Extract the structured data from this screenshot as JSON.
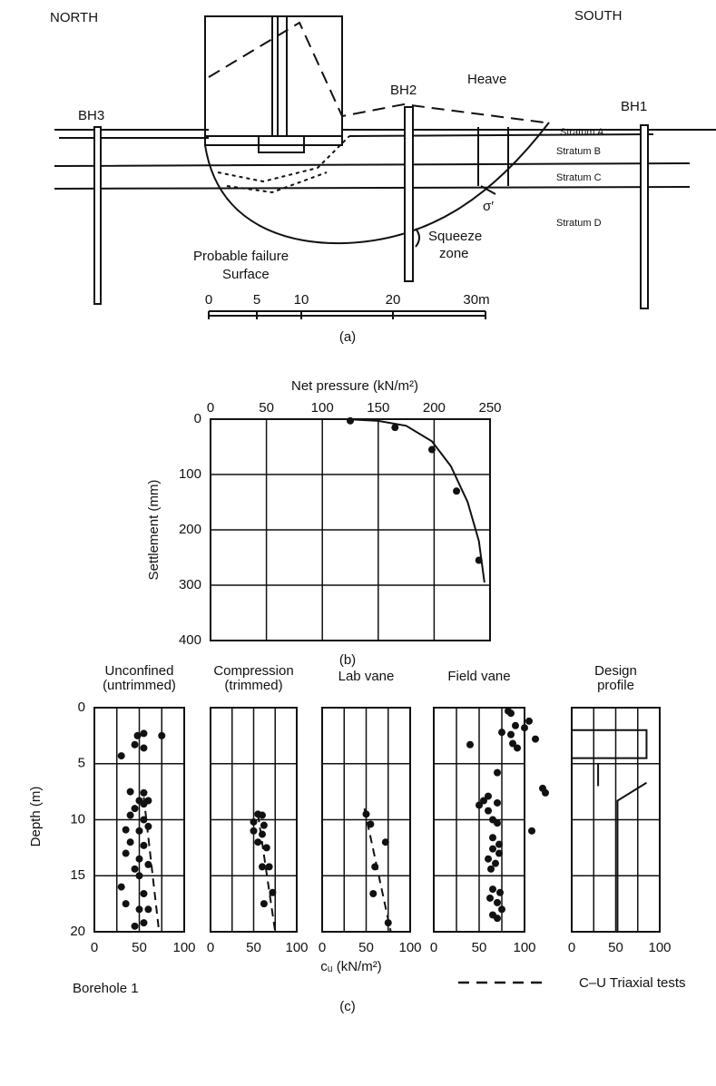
{
  "diagram": {
    "north": "NORTH",
    "south": "SOUTH",
    "bh3": "BH3",
    "bh2": "BH2",
    "bh1": "BH1",
    "heave": "Heave",
    "stratum_a": "Stratum A",
    "stratum_b": "Stratum B",
    "stratum_c": "Stratum C",
    "stratum_d": "Stratum D",
    "failure_1": "Probable failure",
    "failure_2": "Surface",
    "squeeze_1": "Squeeze",
    "squeeze_2": "zone",
    "sigma": "σ′",
    "scale": [
      "0",
      "5",
      "10",
      "20",
      "30m"
    ],
    "panel_label": "(a)"
  },
  "figure_b": {
    "panel_label": "(b)"
  },
  "figure_c": {
    "xlabel": "cᵤ (kN/m²)",
    "ylabel": "Depth (m)",
    "note": "Borehole 1",
    "legend": "C–U Triaxial tests",
    "panel_label": "(c)"
  },
  "chart_data": [
    {
      "type": "scatter",
      "xlabel": "Net pressure (kN/m²)",
      "ylabel": "Settlement (mm)",
      "xlim": [
        0,
        250
      ],
      "xticks": [
        0,
        50,
        100,
        150,
        200,
        250
      ],
      "x_axis_position": "top",
      "ylim": [
        0,
        400
      ],
      "yticks": [
        0,
        100,
        200,
        300,
        400
      ],
      "y_inverted": true,
      "show_ytick_labels": true,
      "grid": true,
      "points": {
        "x": [
          125,
          165,
          198,
          220,
          240
        ],
        "y": [
          3,
          15,
          55,
          130,
          255
        ]
      },
      "lines": [
        {
          "style": "dashed",
          "x": [
            0,
            120
          ],
          "y": [
            0,
            0
          ]
        },
        {
          "style": "solid",
          "x": [
            120,
            150,
            175,
            198,
            215,
            230,
            240,
            245
          ],
          "y": [
            0,
            3,
            12,
            40,
            85,
            150,
            220,
            295
          ]
        }
      ]
    },
    {
      "type": "scatter",
      "title": [
        "Unconfined",
        "(untrimmed)"
      ],
      "xlim": [
        0,
        100
      ],
      "xticks": [
        0,
        50,
        100
      ],
      "xminor": [
        25,
        75
      ],
      "x_axis_position": "bottom",
      "ylim": [
        0,
        20
      ],
      "yticks": [
        0,
        5,
        10,
        15,
        20
      ],
      "y_inverted": true,
      "show_ytick_labels": true,
      "grid": true,
      "points": {
        "x": [
          48,
          55,
          75,
          45,
          55,
          30,
          40,
          55,
          50,
          55,
          45,
          60,
          40,
          55,
          35,
          50,
          60,
          40,
          55,
          35,
          50,
          45,
          60,
          50,
          30,
          55,
          35,
          60,
          50,
          45,
          55
        ],
        "y": [
          2.5,
          2.3,
          2.5,
          3.3,
          3.6,
          4.3,
          7.5,
          7.6,
          8.3,
          8.6,
          9,
          8.3,
          9.6,
          10,
          10.9,
          11,
          10.6,
          12,
          12.3,
          13,
          13.5,
          14.4,
          14,
          15,
          16,
          16.6,
          17.5,
          18,
          18,
          19.5,
          19.2
        ]
      },
      "lines": [
        {
          "style": "dashed",
          "x": [
            55,
            72
          ],
          "y": [
            8,
            20
          ]
        }
      ]
    },
    {
      "type": "scatter",
      "title": [
        "Compression",
        "(trimmed)"
      ],
      "xlim": [
        0,
        100
      ],
      "xticks": [
        0,
        50,
        100
      ],
      "xminor": [
        25,
        75
      ],
      "x_axis_position": "bottom",
      "ylim": [
        0,
        20
      ],
      "yticks": [
        0,
        5,
        10,
        15,
        20
      ],
      "y_inverted": true,
      "show_ytick_labels": false,
      "grid": true,
      "points": {
        "x": [
          55,
          60,
          50,
          62,
          50,
          60,
          55,
          65,
          60,
          68,
          72,
          62
        ],
        "y": [
          9.5,
          9.6,
          10.2,
          10.5,
          11,
          11.3,
          12,
          12.5,
          14.2,
          14.2,
          16.5,
          17.5
        ]
      },
      "lines": [
        {
          "style": "dashed",
          "x": [
            55,
            75
          ],
          "y": [
            9.5,
            20
          ]
        }
      ]
    },
    {
      "type": "scatter",
      "title": [
        "Lab  vane"
      ],
      "xlim": [
        0,
        100
      ],
      "xticks": [
        0,
        50,
        100
      ],
      "xminor": [
        25,
        75
      ],
      "x_axis_position": "bottom",
      "ylim": [
        0,
        20
      ],
      "yticks": [
        0,
        5,
        10,
        15,
        20
      ],
      "y_inverted": true,
      "show_ytick_labels": false,
      "grid": true,
      "points": {
        "x": [
          50,
          55,
          72,
          60,
          58,
          75
        ],
        "y": [
          9.5,
          10.4,
          12,
          14.2,
          16.6,
          19.2
        ]
      },
      "lines": [
        {
          "style": "dashed",
          "x": [
            48,
            78
          ],
          "y": [
            9,
            20
          ]
        }
      ]
    },
    {
      "type": "scatter",
      "title": [
        "Field vane"
      ],
      "xlim": [
        0,
        100
      ],
      "xticks": [
        0,
        50,
        100
      ],
      "xminor": [
        25,
        75
      ],
      "x_axis_position": "bottom",
      "ylim": [
        0,
        20
      ],
      "yticks": [
        0,
        5,
        10,
        15,
        20
      ],
      "y_inverted": true,
      "show_ytick_labels": false,
      "grid": true,
      "points": {
        "x": [
          82,
          85,
          105,
          90,
          100,
          75,
          85,
          112,
          87,
          92,
          40,
          70,
          120,
          123,
          60,
          55,
          70,
          50,
          60,
          65,
          70,
          108,
          65,
          72,
          65,
          72,
          60,
          68,
          63,
          65,
          73,
          62,
          70,
          75,
          65,
          70
        ],
        "y": [
          0.3,
          0.5,
          1.2,
          1.6,
          1.8,
          2.2,
          2.4,
          2.8,
          3.2,
          3.6,
          3.3,
          5.8,
          7.2,
          7.6,
          7.9,
          8.3,
          8.5,
          8.7,
          9.2,
          10,
          10.3,
          11,
          11.6,
          12.2,
          12.6,
          13,
          13.5,
          13.9,
          14.4,
          16.2,
          16.5,
          17,
          17.4,
          18,
          18.5,
          18.8
        ]
      },
      "lines": []
    },
    {
      "type": "scatter",
      "title": [
        "Design",
        "profile"
      ],
      "xlim": [
        0,
        100
      ],
      "xticks": [
        0,
        50,
        100
      ],
      "xminor": [
        25,
        75
      ],
      "x_axis_position": "bottom",
      "ylim": [
        0,
        20
      ],
      "yticks": [
        0,
        5,
        10,
        15,
        20
      ],
      "y_inverted": true,
      "show_ytick_labels": false,
      "grid": true,
      "points": {
        "x": [],
        "y": []
      },
      "lines": [
        {
          "style": "solid",
          "x": [
            0,
            85,
            85,
            0,
            0
          ],
          "y": [
            2,
            2,
            4.5,
            4.5,
            2
          ]
        },
        {
          "style": "solid",
          "x": [
            30,
            30
          ],
          "y": [
            5,
            7
          ]
        },
        {
          "style": "solid",
          "x": [
            85,
            52,
            52
          ],
          "y": [
            6.7,
            8.3,
            20
          ]
        }
      ]
    }
  ]
}
